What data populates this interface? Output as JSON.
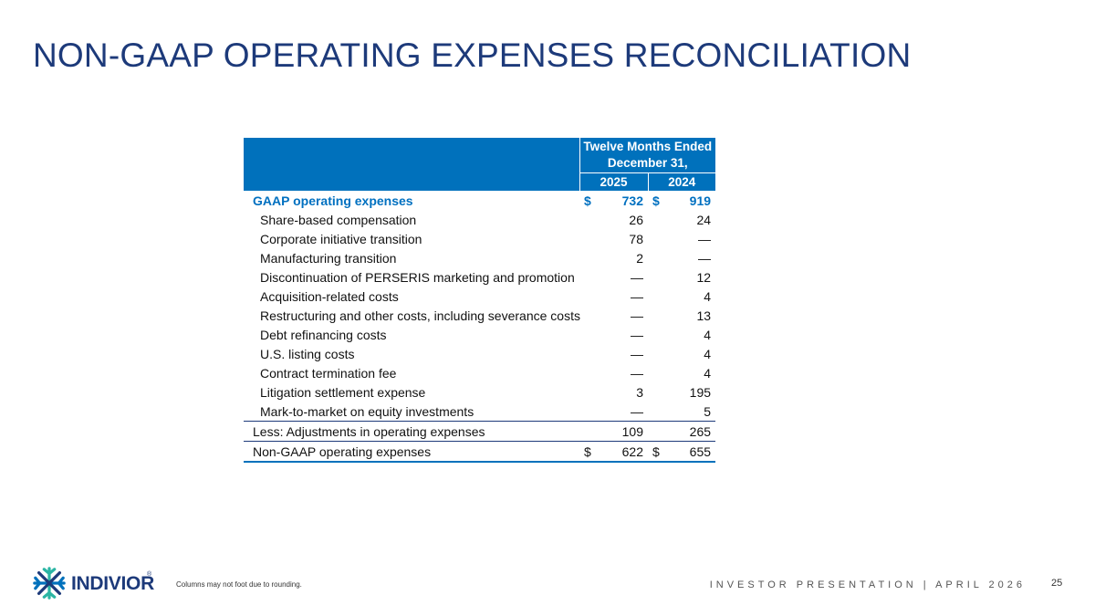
{
  "title": "NON-GAAP OPERATING EXPENSES RECONCILIATION",
  "table": {
    "period_header": "Twelve Months Ended December 31,",
    "years": [
      "2025",
      "2024"
    ],
    "rows": [
      {
        "label": "GAAP operating expenses",
        "v2025": "732",
        "v2024": "919",
        "dollar": "$",
        "style": "hl"
      },
      {
        "label": "Share-based compensation",
        "v2025": "26",
        "v2024": "24",
        "dollar": "",
        "style": "sub"
      },
      {
        "label": "Corporate initiative transition",
        "v2025": "78",
        "v2024": "—",
        "dollar": "",
        "style": "sub"
      },
      {
        "label": "Manufacturing transition",
        "v2025": "2",
        "v2024": "—",
        "dollar": "",
        "style": "sub"
      },
      {
        "label": "Discontinuation of PERSERIS marketing and promotion",
        "v2025": "—",
        "v2024": "12",
        "dollar": "",
        "style": "sub"
      },
      {
        "label": "Acquisition-related costs",
        "v2025": "—",
        "v2024": "4",
        "dollar": "",
        "style": "sub"
      },
      {
        "label": "Restructuring and other costs, including severance costs",
        "v2025": "—",
        "v2024": "13",
        "dollar": "",
        "style": "sub"
      },
      {
        "label": "Debt refinancing costs",
        "v2025": "—",
        "v2024": "4",
        "dollar": "",
        "style": "sub"
      },
      {
        "label": "U.S. listing costs",
        "v2025": "—",
        "v2024": "4",
        "dollar": "",
        "style": "sub"
      },
      {
        "label": "Contract termination fee",
        "v2025": "—",
        "v2024": "4",
        "dollar": "",
        "style": "sub"
      },
      {
        "label": "Litigation settlement expense",
        "v2025": "3",
        "v2024": "195",
        "dollar": "",
        "style": "sub"
      },
      {
        "label": "Mark-to-market on equity investments",
        "v2025": "—",
        "v2024": "5",
        "dollar": "",
        "style": "sub"
      },
      {
        "label": "Less: Adjustments in operating expenses",
        "v2025": "109",
        "v2024": "265",
        "dollar": "",
        "style": "less"
      },
      {
        "label": "Non-GAAP operating expenses",
        "v2025": "622",
        "v2024": "655",
        "dollar": "$",
        "style": "total"
      }
    ]
  },
  "logo": {
    "name": "INDIVIOR",
    "registered": "®",
    "icon": "snowflake-logo-icon",
    "colors": [
      "#1d3a7a",
      "#2bb5a4",
      "#0071bc"
    ]
  },
  "footnote": "Columns may not foot due to rounding.",
  "footer_right": "INVESTOR PRESENTATION | APRIL 2026",
  "page_number": "25",
  "colors": {
    "title": "#1d3a7a",
    "header_bg": "#0071bc",
    "highlight_text": "#0070c0"
  }
}
